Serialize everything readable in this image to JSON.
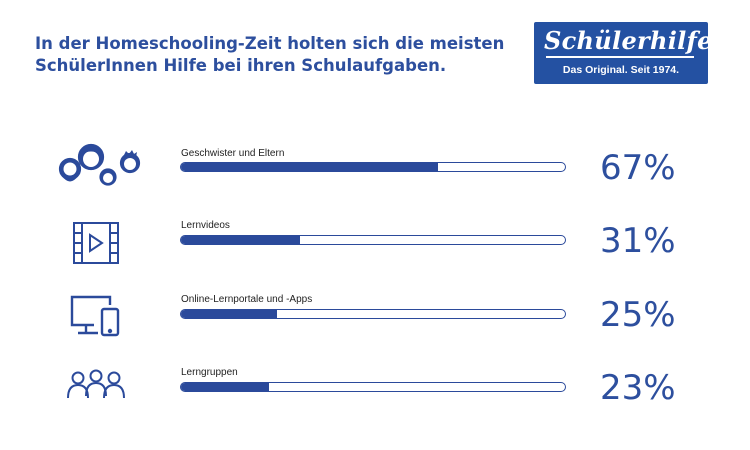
{
  "header": {
    "title_line1": "In der Homeschooling-Zeit holten sich die meisten",
    "title_line2": "SchülerInnen Hilfe bei ihren Schulaufgaben."
  },
  "logo": {
    "script_text": "Schülerhilfe!",
    "tagline": "Das Original. Seit 1974."
  },
  "colors": {
    "accent": "#2b4a9b",
    "logo_bg": "#2451a2"
  },
  "chart_data": {
    "type": "bar",
    "categories": [
      "Geschwister und Eltern",
      "Lernvideos",
      "Online-Lernportale und -Apps",
      "Lerngruppen"
    ],
    "values": [
      67,
      31,
      25,
      23
    ],
    "value_labels": [
      "67%",
      "31%",
      "25%",
      "23%"
    ],
    "icons": [
      "family-icon",
      "video-icon",
      "devices-icon",
      "group-icon"
    ],
    "unit": "%",
    "ylim": [
      0,
      100
    ]
  }
}
